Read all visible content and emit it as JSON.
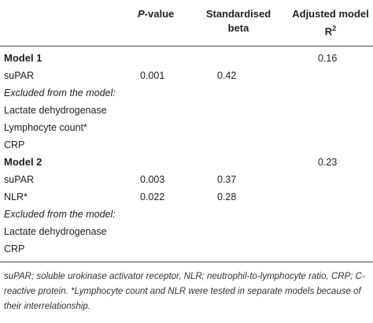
{
  "header": {
    "pvalue_italic": "P",
    "pvalue_rest": "-value",
    "std_beta_line1": "Standardised",
    "std_beta_line2": "beta",
    "adj_line1": "Adjusted model",
    "adj_line2": "R",
    "adj_sup": "2"
  },
  "rows": [
    {
      "label": "Model 1",
      "p": "",
      "beta": "",
      "r2": "0.16"
    },
    {
      "label": "suPAR",
      "p": "0.001",
      "beta": "0.42",
      "r2": ""
    },
    {
      "label": "Excluded from the model:",
      "p": "",
      "beta": "",
      "r2": ""
    },
    {
      "label": "Lactate dehydrogenase",
      "p": "",
      "beta": "",
      "r2": ""
    },
    {
      "label": "Lymphocyte count*",
      "p": "",
      "beta": "",
      "r2": ""
    },
    {
      "label": "CRP",
      "p": "",
      "beta": "",
      "r2": ""
    },
    {
      "label": "Model 2",
      "p": "",
      "beta": "",
      "r2": "0.23"
    },
    {
      "label": "suPAR",
      "p": "0.003",
      "beta": "0.37",
      "r2": ""
    },
    {
      "label": "NLR*",
      "p": "0.022",
      "beta": "0.28",
      "r2": ""
    },
    {
      "label": "Excluded from the model:",
      "p": "",
      "beta": "",
      "r2": ""
    },
    {
      "label": "Lactate dehydrogenase",
      "p": "",
      "beta": "",
      "r2": ""
    },
    {
      "label": "CRP",
      "p": "",
      "beta": "",
      "r2": ""
    }
  ],
  "footnote": "suPAR; soluble urokinase activator receptor, NLR; neutrophil-to-lymphocyte ratio, CRP; C-reactive protein. *Lymphocyte count and NLR were tested in separate models because of their interrelationship."
}
